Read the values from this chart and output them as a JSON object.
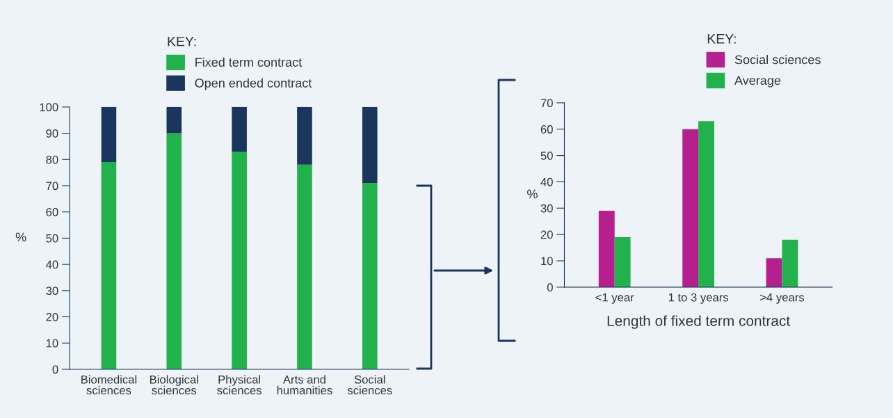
{
  "chart_data": [
    {
      "type": "bar",
      "stacked": true,
      "categories": [
        "Biomedical\nsciences",
        "Biological\nsciences",
        "Physical\nsciences",
        "Arts and\nhumanities",
        "Social\nsciences"
      ],
      "ylabel": "%",
      "ylim": [
        0,
        100
      ],
      "yticks": [
        0,
        10,
        20,
        30,
        40,
        50,
        60,
        70,
        80,
        90,
        100
      ],
      "legend_title": "KEY:",
      "legend": "top",
      "grid": false,
      "series": [
        {
          "name": "Fixed term contract",
          "color": "#22b14c",
          "values": [
            79,
            90,
            83,
            78,
            71
          ]
        },
        {
          "name": "Open ended contract",
          "color": "#1b365d",
          "values": [
            21,
            10,
            17,
            22,
            29
          ]
        }
      ]
    },
    {
      "type": "bar",
      "categories": [
        "<1 year",
        "1 to 3 years",
        ">4 years"
      ],
      "ylabel": "%",
      "xlabel": "Length of fixed term contract",
      "ylim": [
        0,
        70
      ],
      "yticks": [
        0,
        10,
        20,
        30,
        40,
        50,
        60,
        70
      ],
      "legend_title": "KEY:",
      "legend": "top right",
      "grid": false,
      "series": [
        {
          "name": "Social sciences",
          "color": "#b5208f",
          "values": [
            29,
            60,
            11
          ]
        },
        {
          "name": "Average",
          "color": "#22b14c",
          "values": [
            19,
            63,
            18
          ]
        }
      ]
    }
  ]
}
